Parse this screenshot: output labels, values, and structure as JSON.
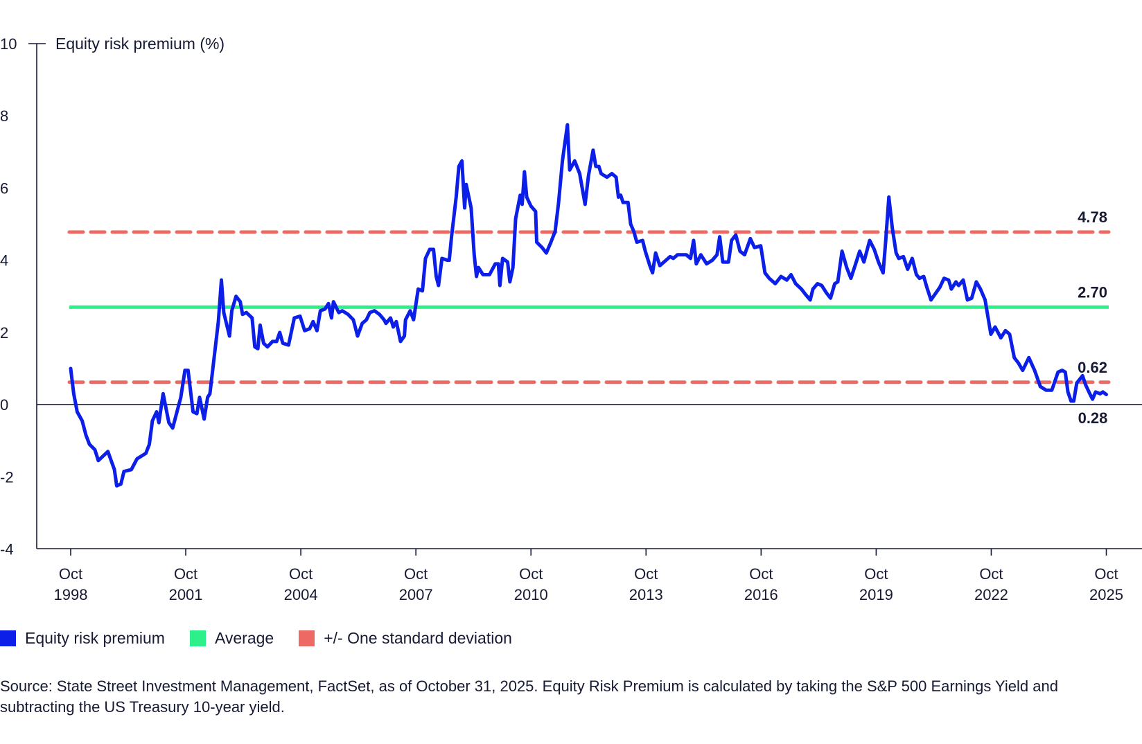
{
  "colors": {
    "erp": "#0b1fe8",
    "average": "#2ef08a",
    "sd": "#ec6a63",
    "text": "#161a33"
  },
  "legend": [
    {
      "label": "Equity risk premium",
      "color": "#0b1fe8"
    },
    {
      "label": "Average",
      "color": "#2ef08a"
    },
    {
      "label": "+/- One standard deviation",
      "color": "#ec6a63"
    }
  ],
  "source": "Source: State Street Investment Management, FactSet, as of October 31, 2025. Equity Risk Premium is calculated by taking the S&P 500 Earnings Yield and subtracting the US Treasury 10-year yield.",
  "chart_data": {
    "type": "line",
    "title": "",
    "ylabel": "Equity risk premium (%)",
    "xlabel": "",
    "ylim": [
      -4,
      10
    ],
    "xlim": [
      1998.75,
      2025.75
    ],
    "yticks": [
      "10",
      "8",
      "6",
      "4",
      "2",
      "0",
      "-2",
      "-4"
    ],
    "xticks": [
      {
        "value": 1998.75,
        "label1": "Oct",
        "label2": "1998"
      },
      {
        "value": 2001.75,
        "label1": "Oct",
        "label2": "2001"
      },
      {
        "value": 2004.75,
        "label1": "Oct",
        "label2": "2004"
      },
      {
        "value": 2007.75,
        "label1": "Oct",
        "label2": "2007"
      },
      {
        "value": 2010.75,
        "label1": "Oct",
        "label2": "2010"
      },
      {
        "value": 2013.75,
        "label1": "Oct",
        "label2": "2013"
      },
      {
        "value": 2016.75,
        "label1": "Oct",
        "label2": "2016"
      },
      {
        "value": 2019.75,
        "label1": "Oct",
        "label2": "2019"
      },
      {
        "value": 2022.75,
        "label1": "Oct",
        "label2": "2022"
      },
      {
        "value": 2025.75,
        "label1": "Oct",
        "label2": "2025"
      }
    ],
    "grid": false,
    "legend_position": "bottom-left",
    "reference_lines": [
      {
        "name": "+1 SD",
        "value": 4.78,
        "label": "4.78",
        "style": "dashed",
        "color": "#ec6a63"
      },
      {
        "name": "Average",
        "value": 2.7,
        "label": "2.70",
        "style": "solid",
        "color": "#2ef08a"
      },
      {
        "name": "-1 SD",
        "value": 0.62,
        "label": "0.62",
        "style": "dashed",
        "color": "#ec6a63"
      }
    ],
    "last_value_label": "0.28",
    "series": [
      {
        "name": "Equity risk premium",
        "color": "#0b1fe8",
        "x": [
          1998.75,
          1998.83,
          1998.92,
          1999.05,
          1999.15,
          1999.24,
          1999.38,
          1999.47,
          1999.72,
          1999.89,
          1999.95,
          2000.06,
          2000.14,
          2000.33,
          2000.48,
          2000.71,
          2000.8,
          2000.88,
          2000.99,
          2001.05,
          2001.16,
          2001.31,
          2001.41,
          2001.62,
          2001.73,
          2001.81,
          2001.94,
          2002.04,
          2002.11,
          2002.23,
          2002.32,
          2002.38,
          2002.6,
          2002.68,
          2002.74,
          2002.89,
          2002.95,
          2003.06,
          2003.17,
          2003.23,
          2003.33,
          2003.48,
          2003.55,
          2003.63,
          2003.69,
          2003.78,
          2003.88,
          2004.01,
          2004.12,
          2004.2,
          2004.28,
          2004.43,
          2004.58,
          2004.73,
          2004.85,
          2004.98,
          2005.07,
          2005.17,
          2005.26,
          2005.38,
          2005.47,
          2005.55,
          2005.6,
          2005.74,
          2005.83,
          2005.98,
          2006.12,
          2006.23,
          2006.35,
          2006.46,
          2006.55,
          2006.67,
          2006.8,
          2006.92,
          2006.97,
          2007.09,
          2007.16,
          2007.24,
          2007.35,
          2007.45,
          2007.48,
          2007.6,
          2007.69,
          2007.81,
          2007.92,
          2008.0,
          2008.11,
          2008.21,
          2008.28,
          2008.34,
          2008.43,
          2008.57,
          2008.62,
          2008.68,
          2008.8,
          2008.87,
          2008.95,
          2009.02,
          2009.06,
          2009.19,
          2009.27,
          2009.33,
          2009.38,
          2009.5,
          2009.67,
          2009.82,
          2009.9,
          2009.94,
          2010.01,
          2010.14,
          2010.2,
          2010.28,
          2010.35,
          2010.47,
          2010.52,
          2010.58,
          2010.64,
          2010.75,
          2010.87,
          2010.9,
          2011.04,
          2011.15,
          2011.27,
          2011.38,
          2011.47,
          2011.57,
          2011.7,
          2011.76,
          2011.89,
          2012.02,
          2012.16,
          2012.25,
          2012.37,
          2012.44,
          2012.52,
          2012.58,
          2012.73,
          2012.86,
          2012.97,
          2013.03,
          2013.09,
          2013.15,
          2013.28,
          2013.35,
          2013.43,
          2013.51,
          2013.66,
          2013.73,
          2013.85,
          2013.92,
          2014.0,
          2014.11,
          2014.27,
          2014.38,
          2014.46,
          2014.57,
          2014.8,
          2014.91,
          2014.99,
          2015.06,
          2015.18,
          2015.33,
          2015.48,
          2015.6,
          2015.67,
          2015.75,
          2015.9,
          2015.98,
          2016.09,
          2016.2,
          2016.32,
          2016.47,
          2016.58,
          2016.74,
          2016.85,
          2016.96,
          2017.12,
          2017.27,
          2017.42,
          2017.53,
          2017.65,
          2017.8,
          2017.91,
          2018.03,
          2018.1,
          2018.22,
          2018.33,
          2018.45,
          2018.56,
          2018.67,
          2018.75,
          2018.86,
          2018.98,
          2019.09,
          2019.2,
          2019.32,
          2019.43,
          2019.58,
          2019.7,
          2019.81,
          2019.93,
          2020.0,
          2020.08,
          2020.17,
          2020.27,
          2020.34,
          2020.46,
          2020.57,
          2020.69,
          2020.8,
          2020.88,
          2020.99,
          2021.07,
          2021.18,
          2021.41,
          2021.52,
          2021.64,
          2021.71,
          2021.83,
          2021.9,
          2022.02,
          2022.13,
          2022.24,
          2022.36,
          2022.47,
          2022.59,
          2022.74,
          2022.85,
          2023.0,
          2023.12,
          2023.23,
          2023.35,
          2023.46,
          2023.57,
          2023.73,
          2023.88,
          2024.03,
          2024.18,
          2024.33,
          2024.49,
          2024.6,
          2024.68,
          2024.75,
          2024.83,
          2024.9,
          2024.98,
          2025.13,
          2025.21,
          2025.32,
          2025.39,
          2025.47,
          2025.59,
          2025.66,
          2025.75
        ],
        "y": [
          1.0,
          0.3,
          -0.2,
          -0.45,
          -0.85,
          -1.1,
          -1.25,
          -1.55,
          -1.3,
          -1.8,
          -2.25,
          -2.2,
          -1.85,
          -1.8,
          -1.5,
          -1.35,
          -1.1,
          -0.45,
          -0.2,
          -0.5,
          0.3,
          -0.5,
          -0.65,
          0.2,
          0.95,
          0.95,
          -0.2,
          -0.25,
          0.2,
          -0.4,
          0.2,
          0.3,
          2.3,
          3.45,
          2.55,
          1.9,
          2.6,
          3.0,
          2.85,
          2.5,
          2.55,
          2.4,
          1.6,
          1.55,
          2.2,
          1.7,
          1.6,
          1.75,
          1.75,
          2.0,
          1.7,
          1.65,
          2.4,
          2.45,
          2.05,
          2.1,
          2.3,
          2.05,
          2.6,
          2.65,
          2.8,
          2.4,
          2.85,
          2.55,
          2.6,
          2.5,
          2.35,
          1.9,
          2.25,
          2.35,
          2.55,
          2.6,
          2.5,
          2.35,
          2.25,
          2.4,
          2.15,
          2.3,
          1.75,
          1.9,
          2.35,
          2.6,
          2.35,
          3.2,
          3.15,
          4.05,
          4.3,
          4.3,
          3.55,
          3.3,
          4.05,
          4.0,
          4.0,
          4.65,
          5.75,
          6.6,
          6.75,
          5.45,
          6.1,
          5.45,
          4.15,
          3.55,
          3.8,
          3.6,
          3.6,
          3.9,
          3.9,
          3.3,
          4.05,
          3.95,
          3.4,
          3.8,
          5.15,
          5.8,
          5.55,
          6.45,
          5.75,
          5.5,
          5.35,
          4.5,
          4.35,
          4.2,
          4.5,
          4.8,
          5.6,
          6.75,
          7.75,
          6.5,
          6.75,
          6.4,
          5.55,
          6.35,
          7.05,
          6.6,
          6.6,
          6.4,
          6.3,
          6.4,
          6.3,
          5.75,
          5.8,
          5.6,
          5.6,
          5.0,
          4.8,
          4.5,
          4.55,
          4.25,
          3.85,
          3.65,
          4.2,
          3.85,
          4.0,
          4.1,
          4.05,
          4.15,
          4.15,
          4.05,
          4.55,
          3.9,
          4.15,
          3.9,
          4.0,
          4.15,
          4.65,
          3.95,
          3.95,
          4.55,
          4.7,
          4.25,
          4.15,
          4.6,
          4.35,
          4.4,
          3.65,
          3.5,
          3.35,
          3.55,
          3.45,
          3.6,
          3.35,
          3.2,
          3.05,
          2.9,
          3.2,
          3.35,
          3.3,
          3.1,
          2.95,
          3.35,
          3.4,
          4.25,
          3.8,
          3.5,
          3.85,
          4.25,
          3.95,
          4.55,
          4.3,
          3.95,
          3.65,
          4.55,
          5.75,
          4.9,
          4.2,
          4.05,
          4.1,
          3.75,
          4.05,
          3.6,
          3.5,
          3.55,
          3.25,
          2.9,
          3.25,
          3.5,
          3.45,
          3.2,
          3.4,
          3.3,
          3.45,
          2.9,
          2.95,
          3.4,
          3.2,
          2.9,
          1.95,
          2.15,
          1.85,
          2.05,
          1.95,
          1.3,
          1.15,
          0.95,
          1.3,
          0.95,
          0.5,
          0.4,
          0.4,
          0.9,
          0.95,
          0.9,
          0.35,
          0.1,
          0.1,
          0.6,
          0.8,
          0.55,
          0.3,
          0.15,
          0.35,
          0.3,
          0.35,
          0.28
        ]
      }
    ]
  }
}
